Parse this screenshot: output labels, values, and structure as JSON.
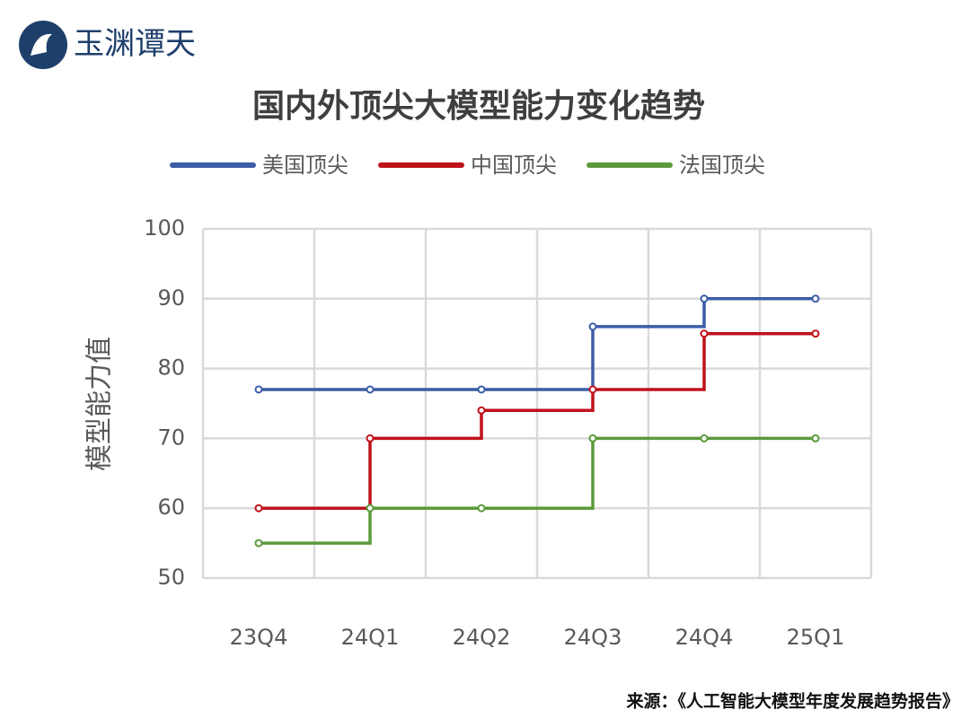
{
  "brand": "玉渊谭天",
  "chart_data": {
    "type": "line",
    "step": "pre",
    "title": "国内外顶尖大模型能力变化趋势",
    "y_label": "模型能力值",
    "categories": [
      "23Q4",
      "24Q1",
      "24Q2",
      "24Q3",
      "24Q4",
      "25Q1"
    ],
    "series": [
      {
        "name": "美国顶尖",
        "color": "#3b5da6",
        "values": [
          77,
          77,
          77,
          86,
          90,
          90
        ]
      },
      {
        "name": "中国顶尖",
        "color": "#c0121b",
        "values": [
          60,
          70,
          74,
          77,
          85,
          85
        ]
      },
      {
        "name": "法国顶尖",
        "color": "#5b9a3b",
        "values": [
          55,
          60,
          60,
          70,
          70,
          70
        ]
      }
    ],
    "ylim": [
      50,
      100
    ],
    "yticks": [
      50,
      60,
      70,
      80,
      90,
      100
    ],
    "grid": true
  },
  "source": "来源：《人工智能大模型年度发展趋势报告》"
}
